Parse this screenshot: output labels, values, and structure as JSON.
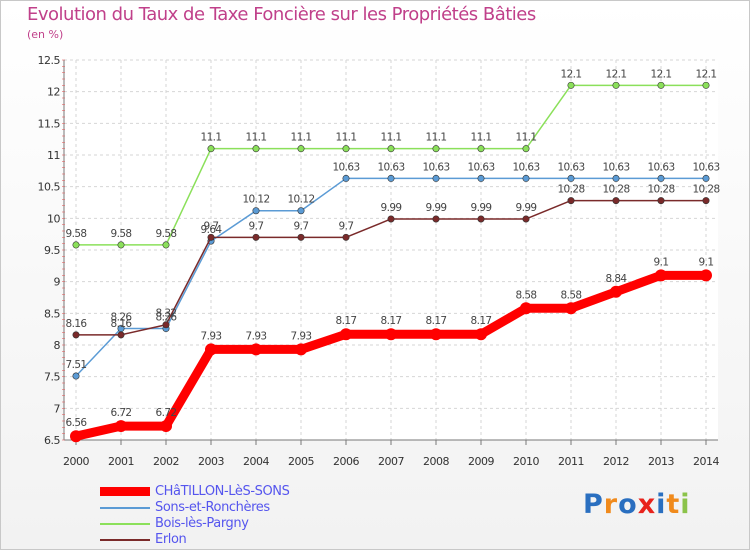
{
  "chart_data": {
    "type": "line",
    "title": "Evolution du Taux de Taxe Foncière sur les Propriétés Bâties",
    "subtitle": "(en %)",
    "xlabel": "",
    "ylabel": "",
    "x": [
      "2000",
      "2001",
      "2002",
      "2003",
      "2004",
      "2005",
      "2006",
      "2007",
      "2008",
      "2009",
      "2010",
      "2011",
      "2012",
      "2013",
      "2014"
    ],
    "ylim": [
      6.5,
      12.5
    ],
    "yticks": [
      "6.5",
      "7",
      "7.5",
      "8",
      "8.5",
      "9",
      "9.5",
      "10",
      "10.5",
      "11",
      "11.5",
      "12",
      "12.5"
    ],
    "grid": true,
    "legend_position": "bottom-left",
    "series": [
      {
        "name": "CHâTILLON-LèS-SONS",
        "color": "#ff0000",
        "values": [
          6.56,
          6.72,
          6.72,
          7.93,
          7.93,
          7.93,
          8.17,
          8.17,
          8.17,
          8.17,
          8.58,
          8.58,
          8.84,
          9.1,
          9.1
        ],
        "labels": [
          "6.56",
          "6.72",
          "6.72",
          "7.93",
          "7.93",
          "7.93",
          "8.17",
          "8.17",
          "8.17",
          "8.17",
          "8.58",
          "8.58",
          "8.84",
          "9.1",
          "9.1"
        ]
      },
      {
        "name": "Sons-et-Ronchères",
        "color": "#5b9bd5",
        "values": [
          7.51,
          8.26,
          8.26,
          9.64,
          10.12,
          10.12,
          10.63,
          10.63,
          10.63,
          10.63,
          10.63,
          10.63,
          10.63,
          10.63,
          10.63
        ],
        "labels": [
          "7.51",
          "8.26",
          "8.26",
          "9.64",
          "10.12",
          "10.12",
          "10.63",
          "10.63",
          "10.63",
          "10.63",
          "10.63",
          "10.63",
          "10.63",
          "10.63",
          "10.63"
        ]
      },
      {
        "name": "Bois-lès-Pargny",
        "color": "#8be05a",
        "values": [
          9.58,
          9.58,
          9.58,
          11.1,
          11.1,
          11.1,
          11.1,
          11.1,
          11.1,
          11.1,
          11.1,
          12.1,
          12.1,
          12.1,
          12.1
        ],
        "labels": [
          "9.58",
          "9.58",
          "9.58",
          "11.1",
          "11.1",
          "11.1",
          "11.1",
          "11.1",
          "11.1",
          "11.1",
          "11.1",
          "12.1",
          "12.1",
          "12.1",
          "12.1"
        ]
      },
      {
        "name": "Erlon",
        "color": "#7a2a2a",
        "values": [
          8.16,
          8.16,
          8.32,
          9.7,
          9.7,
          9.7,
          9.7,
          9.99,
          9.99,
          9.99,
          9.99,
          10.28,
          10.28,
          10.28,
          10.28
        ],
        "labels": [
          "8.16",
          "8.16",
          "8.32",
          "9.7",
          "9.7",
          "9.7",
          "9.7",
          "9.99",
          "9.99",
          "9.99",
          "9.99",
          "10.28",
          "10.28",
          "10.28",
          "10.28"
        ]
      }
    ]
  },
  "logo": {
    "text": "Proxiti",
    "colors": [
      "#2a6fc0",
      "#f08a1c",
      "#2a6fc0",
      "#e8231c",
      "#2a6fc0",
      "#f08a1c",
      "#8bc34a"
    ]
  }
}
